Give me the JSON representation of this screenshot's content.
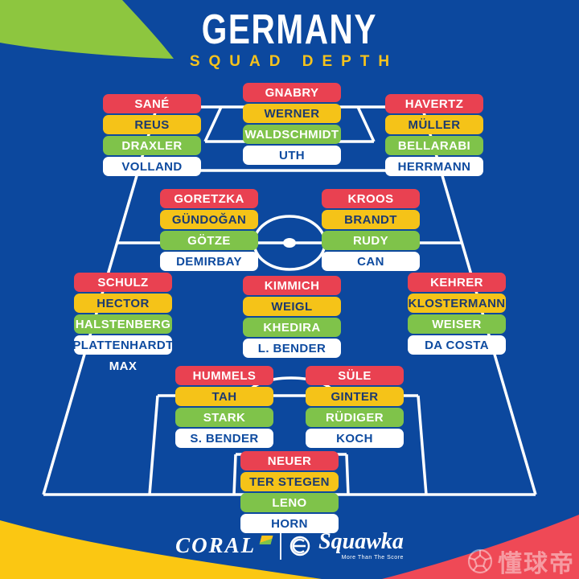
{
  "title": {
    "main": "GERMANY",
    "subtitle": "SQUAD DEPTH"
  },
  "formation": {
    "groups": [
      {
        "position": "attack-left",
        "players": [
          {
            "name": "SANÉ",
            "tier": "red"
          },
          {
            "name": "REUS",
            "tier": "yellow"
          },
          {
            "name": "DRAXLER",
            "tier": "green"
          },
          {
            "name": "VOLLAND",
            "tier": "white"
          }
        ]
      },
      {
        "position": "attack-center",
        "players": [
          {
            "name": "GNABRY",
            "tier": "red"
          },
          {
            "name": "WERNER",
            "tier": "yellow"
          },
          {
            "name": "WALDSCHMIDT",
            "tier": "green"
          },
          {
            "name": "UTH",
            "tier": "white"
          }
        ]
      },
      {
        "position": "attack-right",
        "players": [
          {
            "name": "HAVERTZ",
            "tier": "red"
          },
          {
            "name": "MÜLLER",
            "tier": "yellow"
          },
          {
            "name": "BELLARABI",
            "tier": "green"
          },
          {
            "name": "HERRMANN",
            "tier": "white"
          }
        ]
      },
      {
        "position": "midfield-left",
        "players": [
          {
            "name": "GORETZKA",
            "tier": "red"
          },
          {
            "name": "GÜNDOĞAN",
            "tier": "yellow"
          },
          {
            "name": "GÖTZE",
            "tier": "green"
          },
          {
            "name": "DEMIRBAY",
            "tier": "white"
          }
        ]
      },
      {
        "position": "midfield-right",
        "players": [
          {
            "name": "KROOS",
            "tier": "red"
          },
          {
            "name": "BRANDT",
            "tier": "yellow"
          },
          {
            "name": "RUDY",
            "tier": "green"
          },
          {
            "name": "CAN",
            "tier": "white"
          }
        ]
      },
      {
        "position": "left-back",
        "players": [
          {
            "name": "SCHULZ",
            "tier": "red"
          },
          {
            "name": "HECTOR",
            "tier": "yellow"
          },
          {
            "name": "HALSTENBERG",
            "tier": "green"
          },
          {
            "name": "PLATTENHARDT",
            "tier": "white"
          },
          {
            "name": "MAX",
            "tier": "plain"
          }
        ]
      },
      {
        "position": "defensive-midfield",
        "players": [
          {
            "name": "KIMMICH",
            "tier": "red"
          },
          {
            "name": "WEIGL",
            "tier": "yellow"
          },
          {
            "name": "KHEDIRA",
            "tier": "green"
          },
          {
            "name": "L. BENDER",
            "tier": "white"
          }
        ]
      },
      {
        "position": "right-back",
        "players": [
          {
            "name": "KEHRER",
            "tier": "red"
          },
          {
            "name": "KLOSTERMANN",
            "tier": "yellow"
          },
          {
            "name": "WEISER",
            "tier": "green"
          },
          {
            "name": "DA COSTA",
            "tier": "white"
          }
        ]
      },
      {
        "position": "centre-back-left",
        "players": [
          {
            "name": "HUMMELS",
            "tier": "red"
          },
          {
            "name": "TAH",
            "tier": "yellow"
          },
          {
            "name": "STARK",
            "tier": "green"
          },
          {
            "name": "S. BENDER",
            "tier": "white"
          }
        ]
      },
      {
        "position": "centre-back-right",
        "players": [
          {
            "name": "SÜLE",
            "tier": "red"
          },
          {
            "name": "GINTER",
            "tier": "yellow"
          },
          {
            "name": "RÜDIGER",
            "tier": "green"
          },
          {
            "name": "KOCH",
            "tier": "white"
          }
        ]
      },
      {
        "position": "goalkeeper",
        "players": [
          {
            "name": "NEUER",
            "tier": "red"
          },
          {
            "name": "TER STEGEN",
            "tier": "yellow"
          },
          {
            "name": "LENO",
            "tier": "green"
          },
          {
            "name": "HORN",
            "tier": "white"
          }
        ]
      }
    ]
  },
  "footer": {
    "coral_label": "CORAL",
    "squawka_label": "Squawka",
    "squawka_tagline": "More Than The Score"
  },
  "watermark": {
    "text": "懂球帝"
  },
  "colors": {
    "background": "#0c489e",
    "tier_red": "#e94151",
    "tier_yellow": "#f5c318",
    "tier_green": "#7fc34a",
    "tier_white": "#ffffff",
    "accent_yellow": "#f6c31c",
    "corner_green": "#8dc63f",
    "corner_yellow": "#fbc712",
    "corner_red": "#ef4956",
    "pitch_line": "#ffffff"
  }
}
